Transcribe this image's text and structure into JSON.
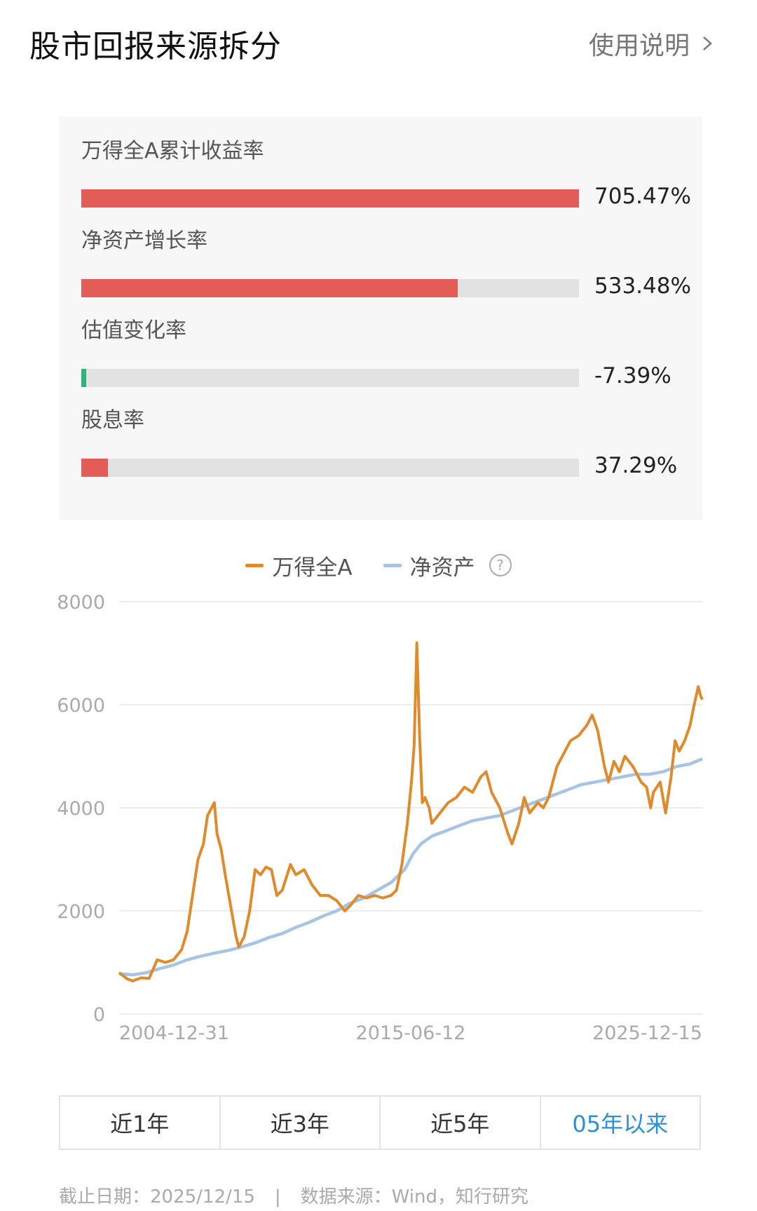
{
  "header": {
    "title": "股市回报来源拆分",
    "help_label": "使用说明"
  },
  "metrics": [
    {
      "label": "万得全A累计收益率",
      "value": "705.47%",
      "fill": 1.0,
      "color": "#e25d58"
    },
    {
      "label": "净资产增长率",
      "value": "533.48%",
      "fill": 0.756,
      "color": "#e25d58"
    },
    {
      "label": "估值变化率",
      "value": "-7.39%",
      "fill": 0.01,
      "color": "#2bb57e"
    },
    {
      "label": "股息率",
      "value": "37.29%",
      "fill": 0.053,
      "color": "#e25d58"
    }
  ],
  "legend": {
    "series1": "万得全A",
    "series2": "净资产",
    "help_symbol": "?"
  },
  "colors": {
    "series1": "#e08a2c",
    "series2": "#a7c4e2",
    "accent": "#2d8fd6",
    "negative": "#2bb57e",
    "positive": "#e25d58"
  },
  "chart_data": {
    "type": "line",
    "x_ticks": [
      "2004-12-31",
      "2015-06-12",
      "2025-12-15"
    ],
    "y_ticks": [
      "0",
      "2000",
      "4000",
      "6000",
      "8000"
    ],
    "ylim": [
      0,
      8000
    ],
    "xlim": [
      2004.5,
      2025.95
    ],
    "grid": true,
    "legend_position": "top-center",
    "series": [
      {
        "name": "万得全A",
        "color": "#e08a2c",
        "points": [
          [
            2004.5,
            800
          ],
          [
            2004.8,
            680
          ],
          [
            2005.0,
            640
          ],
          [
            2005.3,
            700
          ],
          [
            2005.6,
            690
          ],
          [
            2005.9,
            1050
          ],
          [
            2006.2,
            1000
          ],
          [
            2006.5,
            1050
          ],
          [
            2006.8,
            1250
          ],
          [
            2007.0,
            1600
          ],
          [
            2007.2,
            2300
          ],
          [
            2007.4,
            3000
          ],
          [
            2007.6,
            3300
          ],
          [
            2007.75,
            3850
          ],
          [
            2007.9,
            4000
          ],
          [
            2008.0,
            4100
          ],
          [
            2008.1,
            3500
          ],
          [
            2008.25,
            3200
          ],
          [
            2008.4,
            2700
          ],
          [
            2008.6,
            2100
          ],
          [
            2008.8,
            1500
          ],
          [
            2008.9,
            1300
          ],
          [
            2009.1,
            1500
          ],
          [
            2009.3,
            2000
          ],
          [
            2009.5,
            2800
          ],
          [
            2009.7,
            2700
          ],
          [
            2009.9,
            2850
          ],
          [
            2010.1,
            2800
          ],
          [
            2010.3,
            2300
          ],
          [
            2010.5,
            2400
          ],
          [
            2010.8,
            2900
          ],
          [
            2011.0,
            2700
          ],
          [
            2011.3,
            2800
          ],
          [
            2011.6,
            2500
          ],
          [
            2011.9,
            2300
          ],
          [
            2012.2,
            2300
          ],
          [
            2012.5,
            2200
          ],
          [
            2012.8,
            2000
          ],
          [
            2013.0,
            2100
          ],
          [
            2013.3,
            2300
          ],
          [
            2013.6,
            2250
          ],
          [
            2013.9,
            2300
          ],
          [
            2014.2,
            2250
          ],
          [
            2014.5,
            2300
          ],
          [
            2014.7,
            2400
          ],
          [
            2014.9,
            2900
          ],
          [
            2015.1,
            3700
          ],
          [
            2015.25,
            4500
          ],
          [
            2015.35,
            5200
          ],
          [
            2015.45,
            7200
          ],
          [
            2015.55,
            5400
          ],
          [
            2015.65,
            4100
          ],
          [
            2015.75,
            4200
          ],
          [
            2015.9,
            4000
          ],
          [
            2016.0,
            3700
          ],
          [
            2016.3,
            3900
          ],
          [
            2016.6,
            4100
          ],
          [
            2016.9,
            4200
          ],
          [
            2017.2,
            4400
          ],
          [
            2017.5,
            4300
          ],
          [
            2017.8,
            4600
          ],
          [
            2018.0,
            4700
          ],
          [
            2018.2,
            4300
          ],
          [
            2018.5,
            4000
          ],
          [
            2018.8,
            3500
          ],
          [
            2018.95,
            3300
          ],
          [
            2019.2,
            3700
          ],
          [
            2019.4,
            4200
          ],
          [
            2019.6,
            3900
          ],
          [
            2019.9,
            4100
          ],
          [
            2020.1,
            4000
          ],
          [
            2020.3,
            4200
          ],
          [
            2020.6,
            4800
          ],
          [
            2020.9,
            5100
          ],
          [
            2021.1,
            5300
          ],
          [
            2021.4,
            5400
          ],
          [
            2021.7,
            5600
          ],
          [
            2021.9,
            5800
          ],
          [
            2022.1,
            5500
          ],
          [
            2022.35,
            4800
          ],
          [
            2022.5,
            4500
          ],
          [
            2022.7,
            4900
          ],
          [
            2022.9,
            4700
          ],
          [
            2023.1,
            5000
          ],
          [
            2023.4,
            4800
          ],
          [
            2023.7,
            4500
          ],
          [
            2023.9,
            4400
          ],
          [
            2024.05,
            4000
          ],
          [
            2024.15,
            4300
          ],
          [
            2024.4,
            4500
          ],
          [
            2024.6,
            3900
          ],
          [
            2024.8,
            4600
          ],
          [
            2024.95,
            5300
          ],
          [
            2025.1,
            5100
          ],
          [
            2025.3,
            5300
          ],
          [
            2025.5,
            5600
          ],
          [
            2025.65,
            6000
          ],
          [
            2025.8,
            6350
          ],
          [
            2025.9,
            6150
          ],
          [
            2025.95,
            6100
          ]
        ]
      },
      {
        "name": "净资产",
        "color": "#a7c4e2",
        "points": [
          [
            2004.5,
            780
          ],
          [
            2005.0,
            760
          ],
          [
            2005.5,
            800
          ],
          [
            2006.0,
            880
          ],
          [
            2006.5,
            950
          ],
          [
            2007.0,
            1050
          ],
          [
            2007.5,
            1120
          ],
          [
            2008.0,
            1180
          ],
          [
            2008.5,
            1230
          ],
          [
            2009.0,
            1300
          ],
          [
            2009.5,
            1380
          ],
          [
            2010.0,
            1480
          ],
          [
            2010.5,
            1560
          ],
          [
            2011.0,
            1680
          ],
          [
            2011.5,
            1780
          ],
          [
            2012.0,
            1900
          ],
          [
            2012.5,
            2000
          ],
          [
            2013.0,
            2150
          ],
          [
            2013.5,
            2250
          ],
          [
            2014.0,
            2400
          ],
          [
            2014.5,
            2550
          ],
          [
            2014.8,
            2700
          ],
          [
            2015.0,
            2800
          ],
          [
            2015.3,
            3100
          ],
          [
            2015.6,
            3300
          ],
          [
            2016.0,
            3450
          ],
          [
            2016.5,
            3550
          ],
          [
            2017.0,
            3650
          ],
          [
            2017.5,
            3750
          ],
          [
            2018.0,
            3800
          ],
          [
            2018.5,
            3850
          ],
          [
            2019.0,
            3950
          ],
          [
            2019.5,
            4050
          ],
          [
            2020.0,
            4150
          ],
          [
            2020.5,
            4250
          ],
          [
            2021.0,
            4350
          ],
          [
            2021.5,
            4450
          ],
          [
            2022.0,
            4500
          ],
          [
            2022.5,
            4550
          ],
          [
            2023.0,
            4600
          ],
          [
            2023.5,
            4650
          ],
          [
            2024.0,
            4650
          ],
          [
            2024.5,
            4700
          ],
          [
            2025.0,
            4800
          ],
          [
            2025.5,
            4850
          ],
          [
            2025.95,
            4950
          ]
        ]
      }
    ]
  },
  "tabs": [
    {
      "label": "近1年",
      "active": false
    },
    {
      "label": "近3年",
      "active": false
    },
    {
      "label": "近5年",
      "active": false
    },
    {
      "label": "05年以来",
      "active": true
    }
  ],
  "footer": {
    "date_text": "截止日期：2025/12/15",
    "separator": "|",
    "source_text": "数据来源：Wind，知行研究"
  }
}
